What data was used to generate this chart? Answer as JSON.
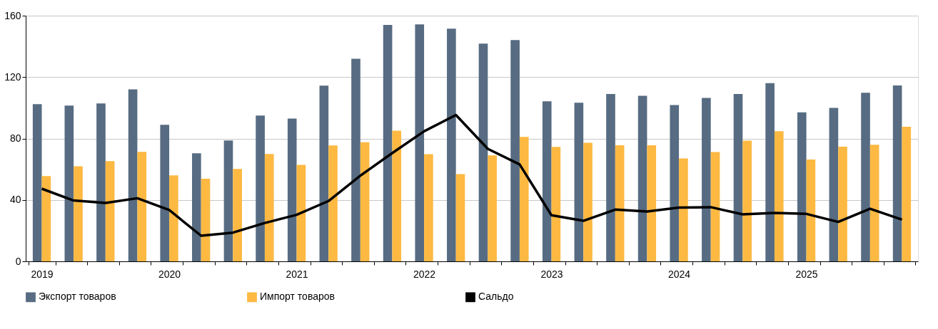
{
  "chart_data": {
    "type": "bar",
    "categories": [
      "2019",
      null,
      null,
      null,
      "2020",
      null,
      null,
      null,
      "2021",
      null,
      null,
      null,
      "2022",
      null,
      null,
      null,
      "2023",
      null,
      null,
      null,
      "2024",
      null,
      null,
      null,
      "2025",
      null,
      null,
      null
    ],
    "series": [
      {
        "name": "Экспорт товаров",
        "color": "#576c82",
        "values": [
          102.4,
          101.4,
          102.8,
          112,
          88.9,
          70.4,
          78.7,
          95,
          93,
          114.4,
          132,
          154,
          154.3,
          151.5,
          141.8,
          144.1,
          104.2,
          103.3,
          109,
          107.8,
          101.8,
          106.4,
          109,
          116.1,
          97,
          99.9,
          109.8,
          114.6
        ]
      },
      {
        "name": "Импорт товаров",
        "color": "#fdb942",
        "values": [
          55.5,
          61.9,
          65.3,
          71.3,
          56,
          53.8,
          60.2,
          69.9,
          62.8,
          75.5,
          77.6,
          85.1,
          69.8,
          56.8,
          69,
          81,
          74.5,
          77.2,
          75.6,
          75.6,
          67,
          71.2,
          78.6,
          84.7,
          66.3,
          74.7,
          75.9,
          87.7
        ]
      },
      {
        "name": "Сальдо",
        "type": "line",
        "color": "#000000",
        "values": [
          47.3,
          39.6,
          38,
          41.1,
          33.4,
          16.7,
          18.7,
          25,
          30.3,
          39.3,
          55.8,
          70.5,
          84.7,
          95.3,
          73.3,
          63.1,
          30,
          26.4,
          33.7,
          32.5,
          35,
          35.3,
          30.6,
          31.5,
          30.9,
          25.7,
          34.3,
          27.2
        ]
      }
    ],
    "ylim": [
      0,
      160
    ],
    "yticks": [
      0,
      40,
      80,
      120,
      160
    ],
    "grid": "y",
    "legend": "bottom",
    "marker": "none",
    "line_style": "solid"
  }
}
